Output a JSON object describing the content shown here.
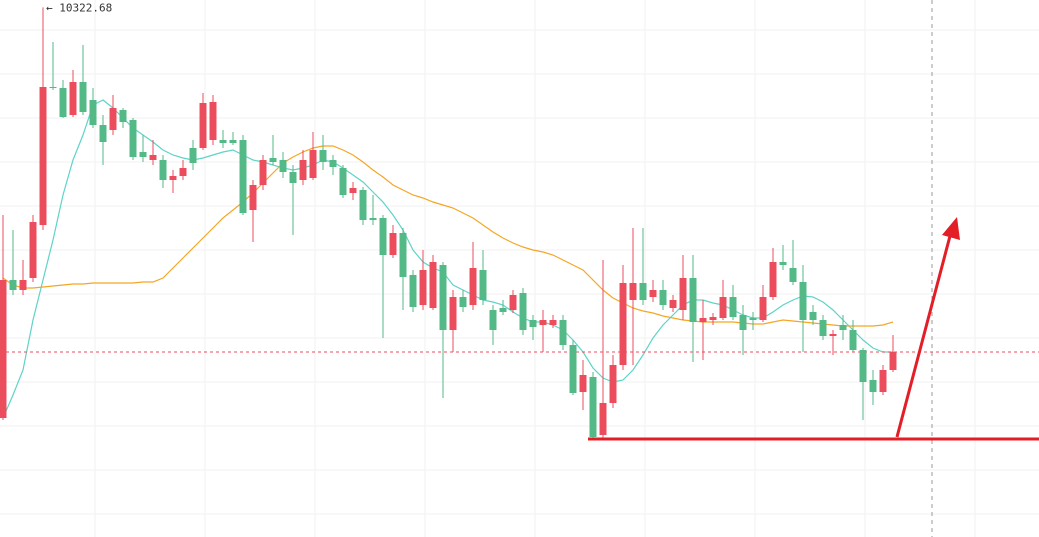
{
  "chart_data": {
    "type": "candlestick",
    "max_label": "← 10322.68",
    "ylim": [
      9793,
      10330
    ],
    "up_color": "#eb4d5c",
    "down_color": "#53b987",
    "open": [
      9912,
      10050,
      10040,
      10052,
      10105,
      10243,
      10242,
      10215,
      10248,
      10230,
      10205,
      10200,
      10220,
      10210,
      10178,
      10170,
      10170,
      10150,
      10154,
      10182,
      10182,
      10190,
      10190,
      10190,
      10190,
      10120,
      10145,
      10172,
      10170,
      10158,
      10150,
      10152,
      10180,
      10170,
      10162,
      10137,
      10140,
      10112,
      10112,
      10075,
      10097,
      10055,
      10025,
      10022,
      10065,
      10000,
      10033,
      10025,
      10060,
      10020,
      10022,
      10020,
      10037,
      10010,
      10005,
      10005,
      10010,
      9985,
      9938,
      9953,
      9895,
      9927,
      9965,
      10030,
      10047,
      10033,
      10040,
      10022,
      10020,
      10052,
      10008,
      10010,
      10012,
      10033,
      10015,
      10012,
      10010,
      10033,
      10068,
      10062,
      10048,
      10018,
      10010,
      9994,
      10005,
      10000,
      9980,
      9950,
      9938,
      9960
    ],
    "high": [
      10115,
      10100,
      10070,
      10115,
      10322.68,
      10288,
      10250,
      10260,
      10285,
      10242,
      10215,
      10235,
      10222,
      10212,
      10195,
      10190,
      10175,
      10160,
      10170,
      10190,
      10237,
      10235,
      10200,
      10198,
      10195,
      10150,
      10175,
      10195,
      10178,
      10165,
      10180,
      10198,
      10195,
      10175,
      10165,
      10148,
      10143,
      10135,
      10115,
      10105,
      10102,
      10060,
      10080,
      10075,
      10068,
      10040,
      10040,
      10088,
      10080,
      10025,
      10030,
      10040,
      10042,
      10015,
      10020,
      10015,
      10015,
      9990,
      9970,
      9958,
      10070,
      9975,
      10065,
      10102,
      10102,
      10050,
      10050,
      10035,
      10075,
      10075,
      10030,
      10017,
      10050,
      10045,
      10025,
      10018,
      10045,
      10082,
      10085,
      10090,
      10065,
      10025,
      10015,
      10000,
      10015,
      10010,
      9982,
      9960,
      9965,
      9995
    ],
    "low": [
      9910,
      10035,
      10035,
      10048,
      10100,
      10240,
      10212,
      10213,
      10215,
      10202,
      10165,
      10195,
      10202,
      10170,
      10168,
      10165,
      10142,
      10137,
      10150,
      10160,
      10180,
      10185,
      10182,
      10185,
      10115,
      10088,
      10140,
      10165,
      10152,
      10095,
      10145,
      10150,
      10160,
      10155,
      10132,
      10130,
      10105,
      10105,
      9992,
      10072,
      10020,
      10018,
      10020,
      10020,
      9932,
      9978,
      10018,
      10020,
      10025,
      9985,
      10015,
      10017,
      9995,
      9990,
      9978,
      10002,
      9980,
      9935,
      9920,
      9890,
      9892,
      9922,
      9960,
      9965,
      10025,
      10028,
      10020,
      10018,
      10010,
      9968,
      9970,
      10005,
      10010,
      10010,
      9975,
      10000,
      10008,
      10030,
      10060,
      10045,
      9978,
      10005,
      9990,
      9975,
      9990,
      9978,
      9910,
      9925,
      9935,
      9958
    ],
    "close": [
      10050,
      10040,
      10050,
      10108,
      10243,
      10242,
      10213,
      10248,
      10218,
      10205,
      10188,
      10222,
      10208,
      10173,
      10173,
      10175,
      10150,
      10154,
      10162,
      10167,
      10227,
      10228,
      10187,
      10187,
      10117,
      10145,
      10170,
      10168,
      10158,
      10147,
      10170,
      10180,
      10168,
      10163,
      10135,
      10142,
      10110,
      10110,
      10075,
      10097,
      10053,
      10023,
      10060,
      10068,
      10000,
      10033,
      10023,
      10062,
      10030,
      10000,
      10018,
      10035,
      10000,
      10003,
      10010,
      10010,
      9985,
      9937,
      9955,
      9893,
      9927,
      9965,
      10047,
      10047,
      10030,
      10040,
      10025,
      10030,
      10052,
      10008,
      10012,
      10013,
      10033,
      10013,
      10000,
      10010,
      10033,
      10068,
      10065,
      10048,
      10010,
      10010,
      9994,
      9996,
      10000,
      9980,
      9948,
      9938,
      9960,
      9978
    ],
    "series": [
      {
        "color": "#5ed3c8",
        "values": [
          9912,
          9935,
          9960,
          10010,
          10050,
          10090,
          10135,
          10170,
          10195,
          10225,
          10230,
          10222,
          10212,
          10202,
          10195,
          10188,
          10180,
          10175,
          10172,
          10170,
          10172,
          10175,
          10178,
          10180,
          10175,
          10170,
          10168,
          10165,
          10162,
          10160,
          10162,
          10165,
          10170,
          10168,
          10162,
          10155,
          10148,
          10138,
          10128,
          10115,
          10100,
          10080,
          10068,
          10062,
          10058,
          10045,
          10040,
          10035,
          10030,
          10028,
          10025,
          10018,
          10012,
          10008,
          10008,
          10005,
          10000,
          9990,
          9978,
          9962,
          9952,
          9948,
          9950,
          9960,
          9975,
          9992,
          10005,
          10015,
          10025,
          10030,
          10030,
          10027,
          10025,
          10020,
          10015,
          10012,
          10012,
          10018,
          10025,
          10030,
          10034,
          10033,
          10028,
          10020,
          10010,
          10000,
          9990,
          9982,
          9978,
          9978
        ]
      },
      {
        "color": "#f5a623",
        "values": [
          10052,
          10045,
          10042,
          10042,
          10043,
          10044,
          10045,
          10046,
          10046,
          10047,
          10047,
          10047,
          10047,
          10047,
          10048,
          10048,
          10052,
          10062,
          10072,
          10082,
          10092,
          10102,
          10112,
          10120,
          10128,
          10137,
          10147,
          10157,
          10167,
          10173,
          10178,
          10182,
          10184,
          10184,
          10180,
          10175,
          10168,
          10160,
          10153,
          10145,
          10140,
          10135,
          10132,
          10128,
          10125,
          10122,
          10117,
          10112,
          10105,
          10098,
          10092,
          10087,
          10083,
          10080,
          10078,
          10075,
          10070,
          10065,
          10060,
          10050,
          10040,
          10032,
          10027,
          10022,
          10019,
          10017,
          10014,
          10012,
          10010,
          10009,
          10008,
          10008,
          10008,
          10008,
          10007,
          10006,
          10006,
          10008,
          10010,
          10009,
          10008,
          10007,
          10006,
          10005,
          10004,
          10004,
          10004,
          10004,
          10005,
          10008
        ]
      }
    ]
  }
}
